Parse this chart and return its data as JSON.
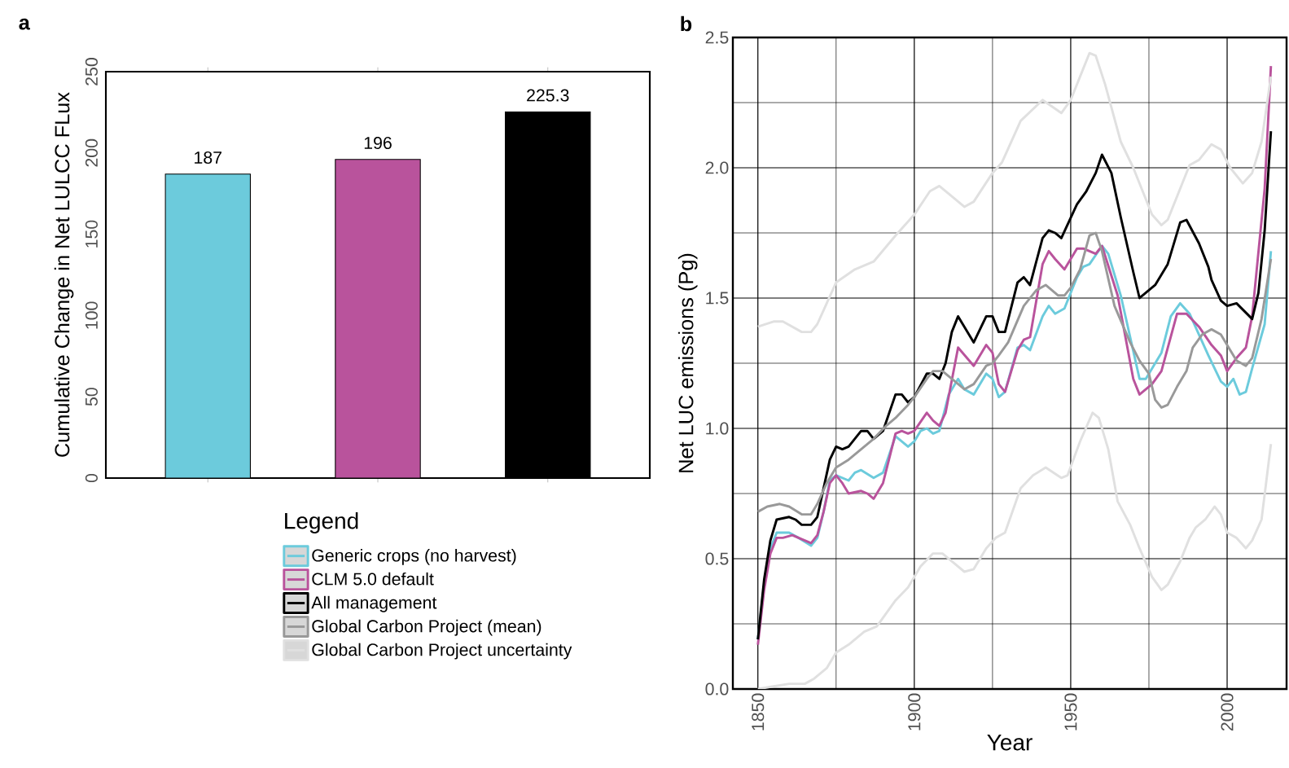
{
  "chart_data": [
    {
      "type": "bar",
      "title": "a",
      "ylabel": "Cumulative Change in Net LULCC FLux",
      "categories": [
        null,
        null,
        null
      ],
      "values": [
        187,
        196,
        225.3
      ],
      "colors": [
        "#6ccbdc",
        "#b9539c",
        "#000000"
      ],
      "ylim": [
        0,
        250
      ],
      "yticks": [
        0,
        50,
        100,
        150,
        200,
        250
      ],
      "data_labels": true
    },
    {
      "type": "line",
      "title": "b",
      "xlabel": "Year",
      "ylabel": "Net LUC emissions (Pg)",
      "legend_title": "Legend",
      "legend": "left",
      "grid": true,
      "xlim": [
        1842,
        2019
      ],
      "ylim": [
        0,
        2.5
      ],
      "xticks": [
        1850,
        {
          "value": 1875,
          "label": null
        },
        1900,
        {
          "value": 1925,
          "label": null
        },
        1950,
        {
          "value": 1975,
          "label": null
        },
        2000
      ],
      "yticks": [
        {
          "value": 0,
          "label": "0.0"
        },
        {
          "value": 0.25,
          "label": null
        },
        {
          "value": 0.5,
          "label": "0.5"
        },
        {
          "value": 0.75,
          "label": null
        },
        {
          "value": 1,
          "label": "1.0"
        },
        {
          "value": 1.25,
          "label": null
        },
        {
          "value": 1.5,
          "label": "1.5"
        },
        {
          "value": 1.75,
          "label": null
        },
        {
          "value": 2,
          "label": "2.0"
        },
        {
          "value": 2.25,
          "label": null
        },
        {
          "value": 2.5,
          "label": "2.5"
        }
      ],
      "series": [
        {
          "name": "Generic crops (no harvest)",
          "color": "#6ccbdc",
          "x": [
            1850,
            1852,
            1854,
            1856,
            1860,
            1863,
            1867,
            1869,
            1871,
            1873,
            1875,
            1879,
            1881,
            1883,
            1887,
            1890,
            1894,
            1898,
            1900,
            1902,
            1904,
            1906,
            1908,
            1911,
            1914,
            1916,
            1919,
            1923,
            1925,
            1927,
            1929,
            1933,
            1935,
            1937,
            1941,
            1943,
            1945,
            1948,
            1952,
            1954,
            1956,
            1960,
            1962,
            1966,
            1972,
            1974,
            1979,
            1982,
            1985,
            1988,
            1991,
            1994,
            1998,
            2000,
            2002,
            2004,
            2006,
            2008,
            2012,
            2014
          ],
          "values": [
            0.19,
            0.4,
            0.54,
            0.6,
            0.6,
            0.58,
            0.55,
            0.58,
            0.68,
            0.8,
            0.82,
            0.8,
            0.83,
            0.84,
            0.81,
            0.83,
            0.97,
            0.93,
            0.95,
            0.99,
            1.0,
            0.98,
            0.99,
            1.13,
            1.19,
            1.15,
            1.13,
            1.21,
            1.19,
            1.12,
            1.14,
            1.31,
            1.32,
            1.3,
            1.43,
            1.47,
            1.44,
            1.46,
            1.58,
            1.62,
            1.63,
            1.7,
            1.67,
            1.51,
            1.19,
            1.19,
            1.29,
            1.43,
            1.48,
            1.44,
            1.36,
            1.28,
            1.18,
            1.16,
            1.19,
            1.13,
            1.14,
            1.23,
            1.4,
            1.68
          ]
        },
        {
          "name": "CLM 5.0 default",
          "color": "#b9539c",
          "x": [
            1850,
            1852,
            1854,
            1856,
            1858,
            1861,
            1863,
            1867,
            1869,
            1871,
            1873,
            1875,
            1877,
            1879,
            1883,
            1885,
            1887,
            1890,
            1894,
            1896,
            1898,
            1900,
            1904,
            1906,
            1908,
            1910,
            1914,
            1919,
            1923,
            1925,
            1927,
            1929,
            1933,
            1935,
            1937,
            1941,
            1943,
            1945,
            1948,
            1952,
            1954,
            1958,
            1960,
            1965,
            1970,
            1972,
            1976,
            1979,
            1984,
            1987,
            1991,
            1995,
            1998,
            2000,
            2003,
            2006,
            2008,
            2012,
            2014
          ],
          "values": [
            0.17,
            0.38,
            0.52,
            0.58,
            0.58,
            0.59,
            0.58,
            0.56,
            0.59,
            0.68,
            0.79,
            0.82,
            0.79,
            0.75,
            0.76,
            0.75,
            0.73,
            0.79,
            0.98,
            0.99,
            0.98,
            0.99,
            1.06,
            1.03,
            1.01,
            1.06,
            1.31,
            1.24,
            1.32,
            1.29,
            1.17,
            1.14,
            1.3,
            1.34,
            1.35,
            1.63,
            1.68,
            1.65,
            1.61,
            1.69,
            1.69,
            1.67,
            1.7,
            1.51,
            1.19,
            1.13,
            1.17,
            1.22,
            1.44,
            1.44,
            1.39,
            1.32,
            1.28,
            1.22,
            1.27,
            1.31,
            1.43,
            1.92,
            2.39
          ]
        },
        {
          "name": "All management",
          "color": "#000000",
          "x": [
            1850,
            1852,
            1854,
            1856,
            1860,
            1862,
            1864,
            1867,
            1869,
            1871,
            1873,
            1875,
            1877,
            1879,
            1883,
            1885,
            1887,
            1890,
            1894,
            1896,
            1898,
            1900,
            1904,
            1906,
            1908,
            1910,
            1912,
            1914,
            1919,
            1923,
            1925,
            1927,
            1929,
            1933,
            1935,
            1937,
            1941,
            1943,
            1945,
            1947,
            1952,
            1955,
            1958,
            1960,
            1963,
            1966,
            1970,
            1972,
            1977,
            1981,
            1985,
            1987,
            1991,
            1994,
            1995,
            1998,
            2000,
            2003,
            2008,
            2010,
            2012,
            2014
          ],
          "values": [
            0.19,
            0.42,
            0.57,
            0.65,
            0.66,
            0.65,
            0.63,
            0.63,
            0.66,
            0.77,
            0.88,
            0.93,
            0.92,
            0.93,
            0.99,
            0.99,
            0.96,
            0.99,
            1.13,
            1.13,
            1.1,
            1.12,
            1.21,
            1.21,
            1.19,
            1.25,
            1.37,
            1.43,
            1.33,
            1.43,
            1.43,
            1.37,
            1.37,
            1.56,
            1.58,
            1.55,
            1.73,
            1.76,
            1.75,
            1.73,
            1.86,
            1.91,
            1.98,
            2.05,
            1.98,
            1.81,
            1.6,
            1.5,
            1.55,
            1.63,
            1.79,
            1.8,
            1.71,
            1.62,
            1.57,
            1.49,
            1.47,
            1.48,
            1.42,
            1.52,
            1.76,
            2.14
          ]
        },
        {
          "name": "Global Carbon Project (mean)",
          "color": "#999999",
          "x": [
            1850,
            1853,
            1857,
            1860,
            1864,
            1867,
            1869,
            1872,
            1875,
            1879,
            1883,
            1887,
            1891,
            1894,
            1898,
            1900,
            1904,
            1906,
            1909,
            1912,
            1916,
            1919,
            1923,
            1925,
            1927,
            1930,
            1935,
            1939,
            1942,
            1946,
            1948,
            1950,
            1953,
            1956,
            1958,
            1960,
            1964,
            1969,
            1972,
            1975,
            1977,
            1979,
            1981,
            1984,
            1987,
            1989,
            1992,
            1995,
            1998,
            2001,
            2003,
            2006,
            2008,
            2011,
            2014
          ],
          "values": [
            0.68,
            0.7,
            0.71,
            0.7,
            0.67,
            0.67,
            0.71,
            0.79,
            0.85,
            0.88,
            0.92,
            0.96,
            1.01,
            1.04,
            1.09,
            1.12,
            1.19,
            1.22,
            1.22,
            1.19,
            1.15,
            1.17,
            1.24,
            1.25,
            1.28,
            1.33,
            1.47,
            1.53,
            1.55,
            1.51,
            1.51,
            1.54,
            1.61,
            1.74,
            1.75,
            1.68,
            1.47,
            1.33,
            1.26,
            1.21,
            1.11,
            1.08,
            1.09,
            1.16,
            1.22,
            1.31,
            1.36,
            1.38,
            1.36,
            1.3,
            1.26,
            1.24,
            1.27,
            1.42,
            1.65
          ]
        },
        {
          "name": "Global Carbon Project  uncertainty",
          "color": "#e0e0e0",
          "x": [
            1850,
            1855,
            1858,
            1864,
            1867,
            1869,
            1875,
            1881,
            1887,
            1894,
            1900,
            1905,
            1908,
            1911,
            1916,
            1919,
            1925,
            1928,
            1934,
            1941,
            1947,
            1950,
            1954,
            1956,
            1958,
            1961,
            1966,
            1970,
            1976,
            1979,
            1981,
            1988,
            1991,
            1995,
            1998,
            2001,
            2005,
            2008,
            2011,
            2014
          ],
          "values": [
            1.39,
            1.41,
            1.41,
            1.37,
            1.37,
            1.4,
            1.56,
            1.61,
            1.64,
            1.74,
            1.82,
            1.91,
            1.93,
            1.9,
            1.85,
            1.87,
            1.98,
            2.02,
            2.18,
            2.26,
            2.21,
            2.26,
            2.38,
            2.44,
            2.43,
            2.32,
            2.1,
            2.0,
            1.82,
            1.78,
            1.8,
            2.01,
            2.03,
            2.09,
            2.07,
            2.0,
            1.94,
            1.98,
            2.1,
            2.35
          ]
        },
        {
          "color": "#e0e0e0",
          "x": [
            1850,
            1855,
            1860,
            1865,
            1868,
            1872,
            1875,
            1879,
            1884,
            1888,
            1894,
            1898,
            1902,
            1906,
            1909,
            1913,
            1916,
            1919,
            1923,
            1926,
            1929,
            1934,
            1938,
            1942,
            1947,
            1949,
            1953,
            1957,
            1959,
            1962,
            1965,
            1969,
            1972,
            1976,
            1979,
            1981,
            1985,
            1988,
            1990,
            1993,
            1996,
            1998,
            2000,
            2003,
            2006,
            2008,
            2011,
            2014
          ],
          "values": [
            0.0,
            0.01,
            0.02,
            0.02,
            0.04,
            0.08,
            0.14,
            0.17,
            0.22,
            0.24,
            0.34,
            0.39,
            0.47,
            0.52,
            0.52,
            0.48,
            0.45,
            0.46,
            0.54,
            0.58,
            0.6,
            0.77,
            0.82,
            0.85,
            0.81,
            0.82,
            0.95,
            1.06,
            1.04,
            0.92,
            0.72,
            0.63,
            0.54,
            0.43,
            0.38,
            0.4,
            0.49,
            0.58,
            0.62,
            0.65,
            0.7,
            0.67,
            0.6,
            0.58,
            0.54,
            0.57,
            0.65,
            0.94
          ]
        }
      ]
    }
  ]
}
